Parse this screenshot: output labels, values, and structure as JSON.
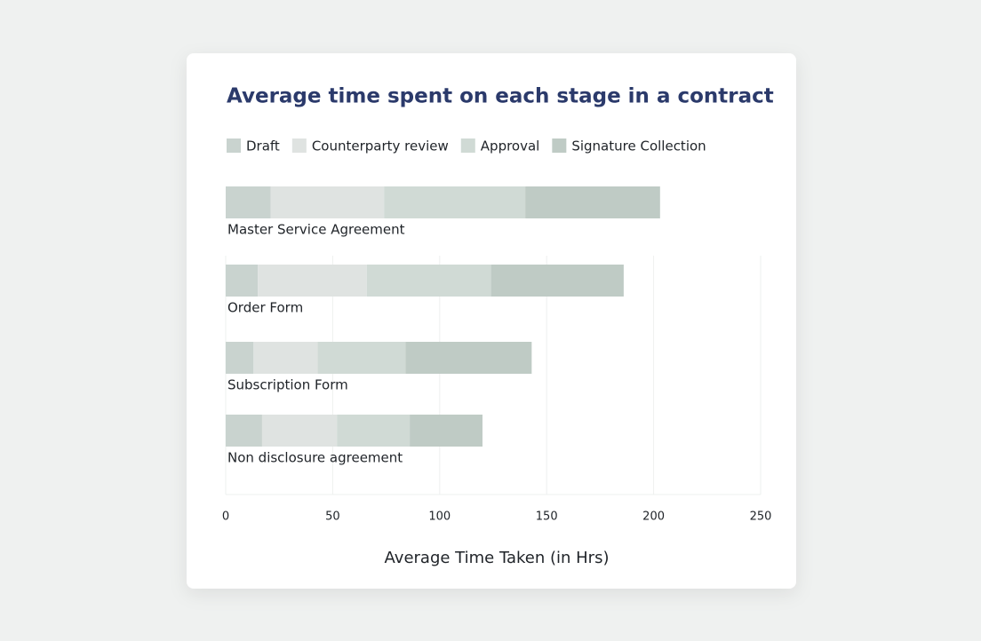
{
  "chart_data": {
    "type": "bar",
    "orientation": "horizontal",
    "stacked": true,
    "title": "Average time spent on each stage in a contract",
    "x_label": "Average Time Taken (in Hrs)",
    "categories": [
      "Master Service Agreement",
      "Order Form",
      "Subscription Form",
      "Non disclosure agreement"
    ],
    "series": [
      {
        "name": "Draft",
        "color": "#c9d3cf",
        "values": [
          21,
          15,
          13,
          17
        ]
      },
      {
        "name": "Counterparty review",
        "color": "#dfe3e1",
        "values": [
          53,
          51,
          30,
          35
        ]
      },
      {
        "name": "Approval",
        "color": "#d0dad5",
        "values": [
          66,
          58,
          41,
          34
        ]
      },
      {
        "name": "Signature Collection",
        "color": "#bfcbc5",
        "values": [
          63,
          62,
          59,
          34
        ]
      }
    ],
    "xlim": [
      0,
      250
    ],
    "xticks": [
      0,
      50,
      100,
      150,
      200,
      250
    ],
    "grid": true
  }
}
